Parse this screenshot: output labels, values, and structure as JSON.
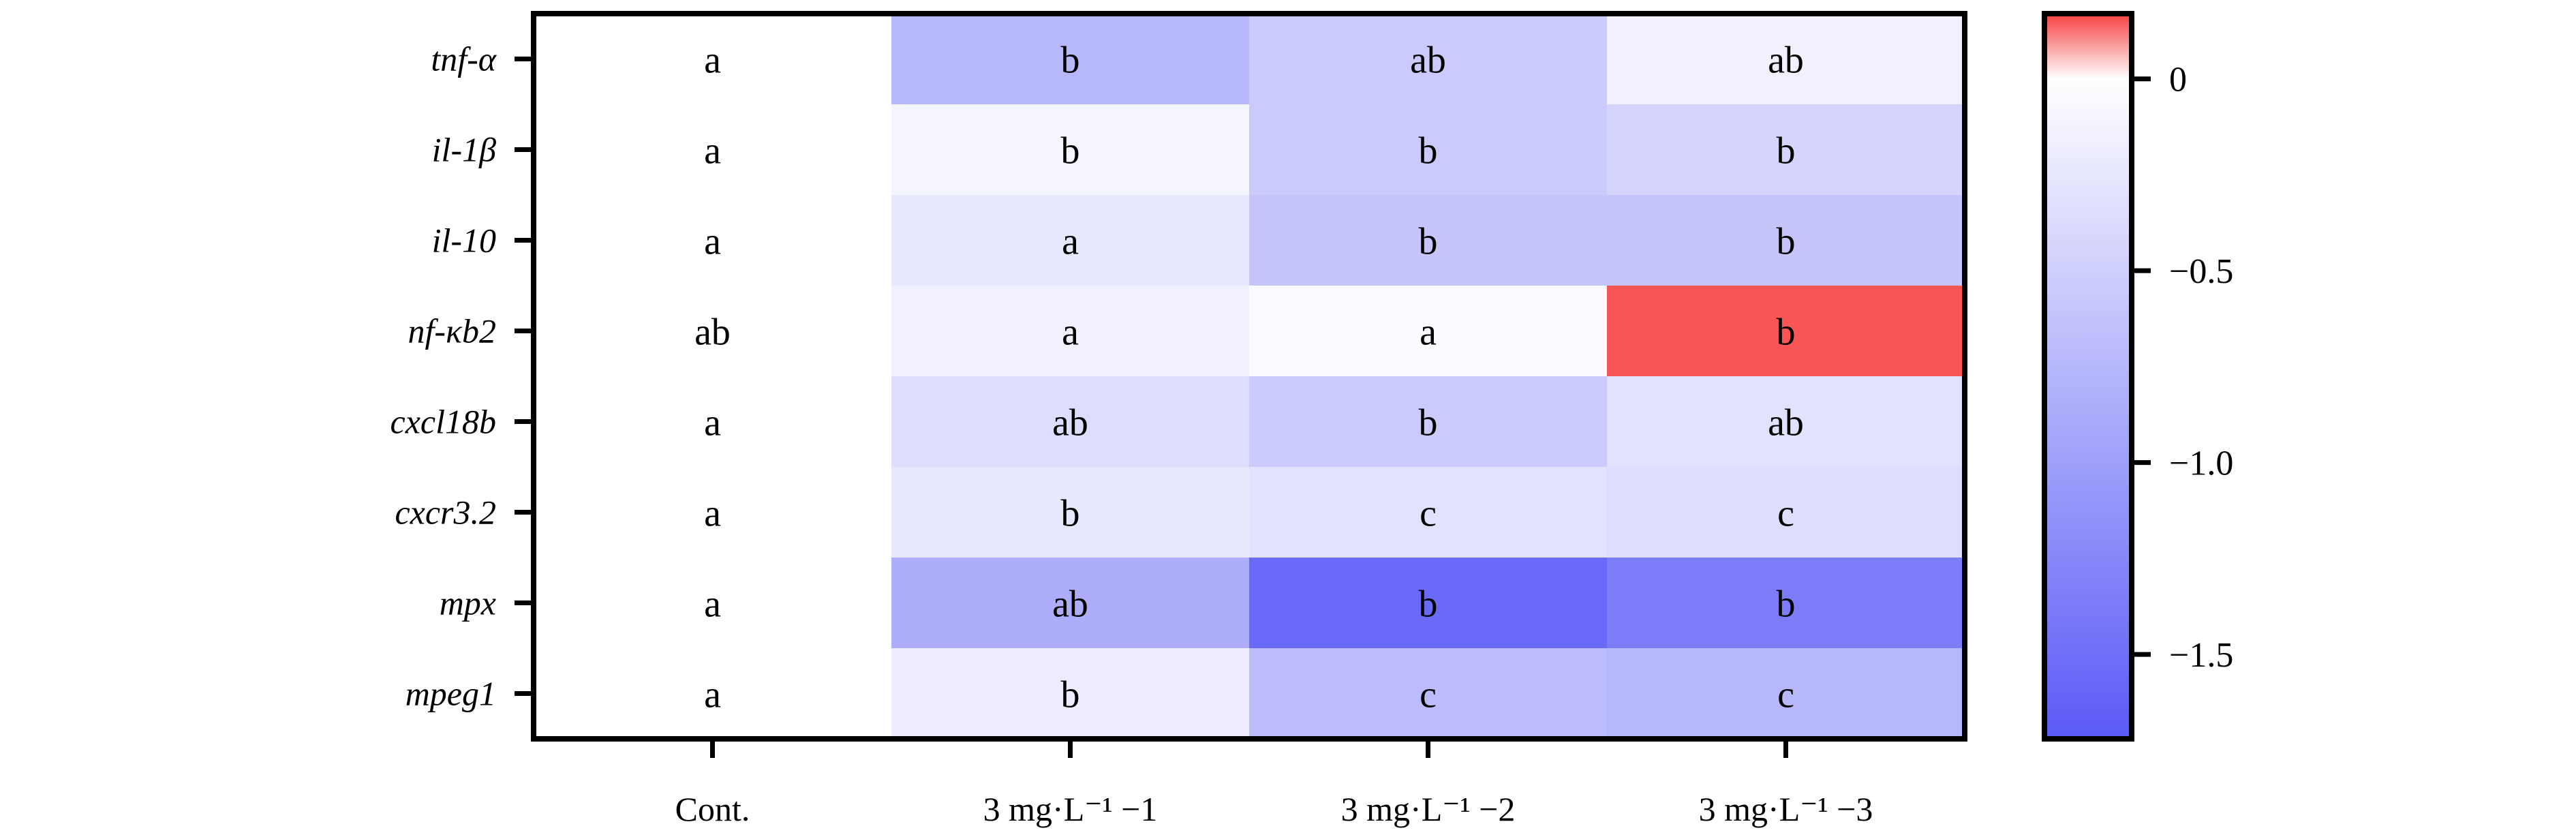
{
  "chart_data": {
    "type": "heatmap",
    "title": "",
    "xlabel": "",
    "ylabel": "",
    "rows": [
      "tnf-α",
      "il-1β",
      "il-10",
      "nf-κb2",
      "cxcl18b",
      "cxcr3.2",
      "mpx",
      "mpeg1"
    ],
    "columns": [
      "Cont.",
      "3 mg·L⁻¹ −1",
      "3 mg·L⁻¹ −2",
      "3 mg·L⁻¹ −3"
    ],
    "values": [
      [
        0.0,
        -0.75,
        -0.55,
        -0.15
      ],
      [
        0.0,
        -0.1,
        -0.55,
        -0.45
      ],
      [
        0.0,
        -0.25,
        -0.6,
        -0.6
      ],
      [
        0.0,
        -0.15,
        -0.05,
        0.15
      ],
      [
        0.0,
        -0.35,
        -0.55,
        -0.3
      ],
      [
        0.0,
        -0.25,
        -0.3,
        -0.35
      ],
      [
        0.0,
        -0.85,
        -1.55,
        -1.35
      ],
      [
        0.0,
        -0.2,
        -0.7,
        -0.75
      ]
    ],
    "significance_letters": [
      [
        "a",
        "b",
        "ab",
        "ab"
      ],
      [
        "a",
        "b",
        "b",
        "b"
      ],
      [
        "a",
        "a",
        "b",
        "b"
      ],
      [
        "ab",
        "a",
        "a",
        "b"
      ],
      [
        "a",
        "ab",
        "b",
        "ab"
      ],
      [
        "a",
        "b",
        "c",
        "c"
      ],
      [
        "a",
        "ab",
        "b",
        "b"
      ],
      [
        "a",
        "b",
        "c",
        "c"
      ]
    ],
    "colorbar": {
      "range": [
        -1.72,
        0.17
      ],
      "ticks": [
        0,
        -0.5,
        -1.0,
        -1.5
      ],
      "tick_labels": [
        "0",
        "−0.5",
        "−1.0",
        "−1.5"
      ],
      "low_color": "#5a5af7",
      "mid_color": "#ffffff",
      "high_color": "#f74040",
      "placement": "right"
    },
    "grid": false
  }
}
